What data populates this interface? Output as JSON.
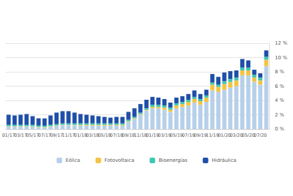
{
  "chart_data": {
    "type": "bar",
    "stacked": true,
    "grid": true,
    "legend": "bottom",
    "categories": [
      "01/17",
      null,
      "03/17",
      null,
      "05/17",
      null,
      "07/17",
      null,
      "09/17",
      null,
      "11/17",
      null,
      "01/18",
      null,
      "03/18",
      null,
      "05/18",
      null,
      "07/18",
      null,
      "09/18",
      null,
      "11/18",
      null,
      "01/19",
      null,
      "03/19",
      null,
      "05/19",
      null,
      "07/19",
      null,
      "09/19",
      null,
      "11/19",
      null,
      "01/20",
      null,
      "03/20",
      null,
      "05/20",
      null,
      "07/20",
      null
    ],
    "ylim": [
      0,
      12
    ],
    "yticks": [
      {
        "value": 0,
        "label": "0 %"
      },
      {
        "value": 2,
        "label": "2 %"
      },
      {
        "value": 4,
        "label": "4 %"
      },
      {
        "value": 6,
        "label": "6 %"
      },
      {
        "value": 8,
        "label": "8 %"
      },
      {
        "value": 10,
        "label": "10 %"
      },
      {
        "value": 12,
        "label": "12 %"
      }
    ],
    "series": [
      {
        "name": "Eólica",
        "color": "#b7d0ea",
        "values": [
          0.35,
          0.35,
          0.35,
          0.35,
          0.35,
          0.25,
          0.25,
          0.35,
          0.45,
          0.55,
          0.55,
          0.55,
          0.5,
          0.5,
          0.5,
          0.5,
          0.5,
          0.5,
          0.5,
          0.5,
          1.0,
          1.4,
          2.0,
          2.6,
          2.9,
          2.9,
          2.7,
          2.4,
          2.9,
          3.1,
          3.3,
          3.7,
          3.4,
          3.8,
          5.4,
          5.2,
          5.5,
          5.8,
          6.0,
          7.5,
          7.5,
          6.6,
          6.2,
          8.8
        ]
      },
      {
        "name": "Fotovoltaica",
        "color": "#f3c443",
        "values": [
          0.05,
          0.05,
          0.05,
          0.05,
          0.05,
          0.05,
          0.05,
          0.05,
          0.05,
          0.05,
          0.05,
          0.05,
          0.1,
          0.1,
          0.1,
          0.1,
          0.1,
          0.1,
          0.1,
          0.1,
          0.1,
          0.1,
          0.1,
          0.1,
          0.2,
          0.2,
          0.3,
          0.3,
          0.4,
          0.4,
          0.5,
          0.5,
          0.5,
          0.6,
          0.8,
          0.7,
          0.8,
          0.8,
          0.8,
          0.7,
          0.7,
          0.6,
          0.6,
          0.9
        ]
      },
      {
        "name": "Bioenergías",
        "color": "#3ec7b3",
        "values": [
          0.2,
          0.2,
          0.2,
          0.2,
          0.2,
          0.2,
          0.2,
          0.2,
          0.2,
          0.2,
          0.2,
          0.2,
          0.2,
          0.2,
          0.2,
          0.2,
          0.2,
          0.2,
          0.2,
          0.2,
          0.2,
          0.2,
          0.2,
          0.2,
          0.3,
          0.3,
          0.3,
          0.3,
          0.3,
          0.3,
          0.3,
          0.3,
          0.3,
          0.3,
          0.3,
          0.3,
          0.4,
          0.4,
          0.4,
          0.4,
          0.4,
          0.4,
          0.4,
          0.4
        ]
      },
      {
        "name": "Hidráulica",
        "color": "#1f4fa8",
        "values": [
          1.4,
          1.3,
          1.4,
          1.5,
          1.2,
          1.0,
          1.0,
          1.3,
          1.6,
          1.7,
          1.7,
          1.5,
          1.3,
          1.2,
          1.1,
          1.0,
          0.9,
          0.8,
          0.9,
          0.9,
          1.1,
          1.2,
          1.2,
          1.2,
          1.1,
          1.0,
          0.9,
          0.7,
          0.8,
          0.8,
          0.8,
          0.9,
          0.7,
          0.8,
          1.2,
          1.1,
          1.2,
          1.1,
          1.0,
          1.2,
          1.0,
          0.7,
          0.6,
          0.9
        ]
      }
    ]
  }
}
